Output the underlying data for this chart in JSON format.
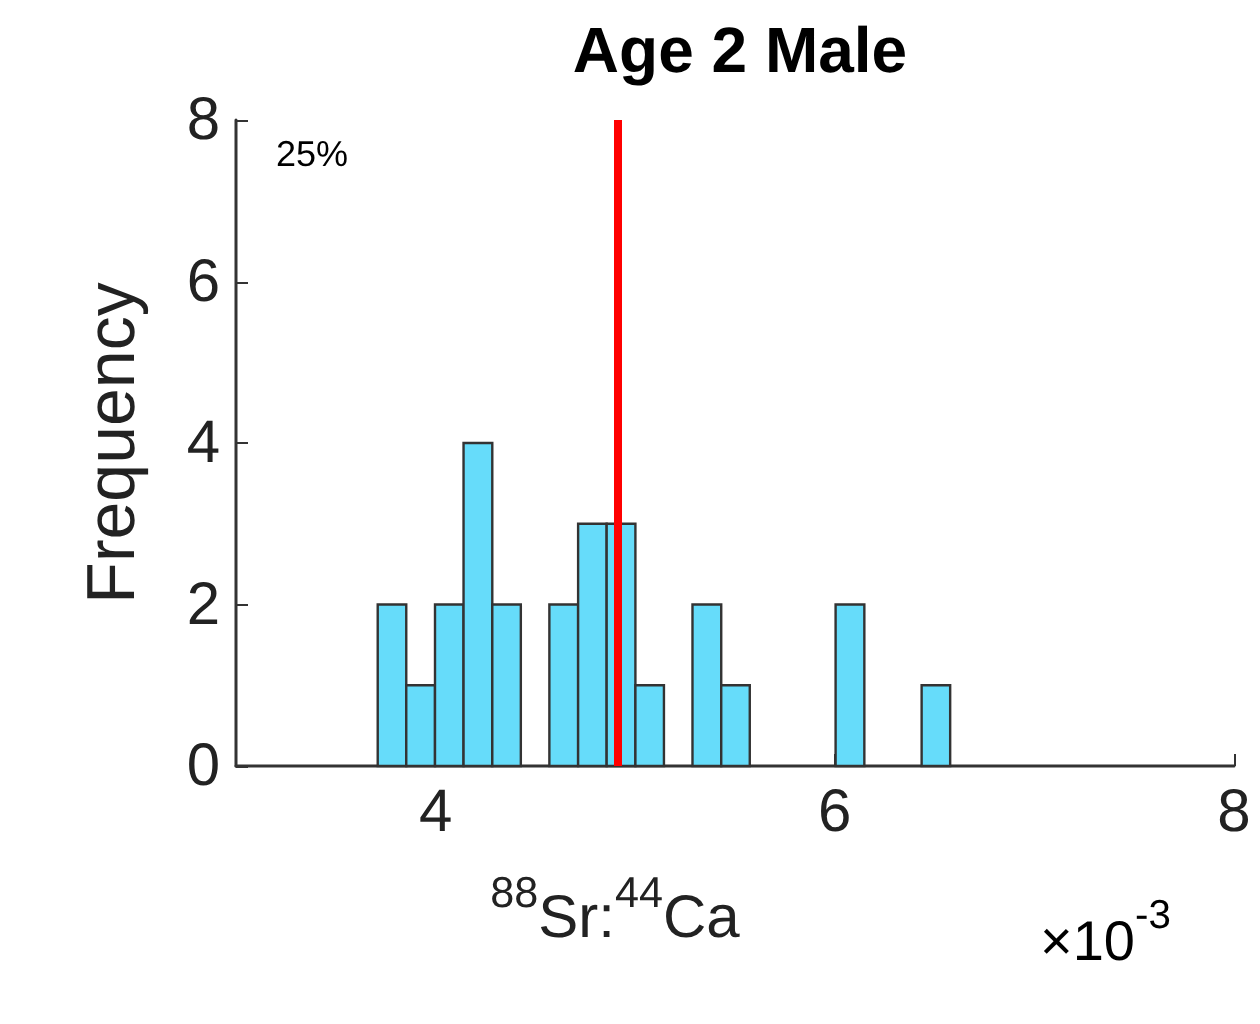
{
  "chart_data": {
    "type": "histogram",
    "title": "Age 2 Male",
    "xlabel": "$^{88}$Sr:$^{44}$Ca",
    "ylabel": "Frequency",
    "bins": [
      3.71,
      3.853,
      3.997,
      4.14,
      4.284,
      4.427,
      4.57,
      4.714,
      4.857,
      5.001,
      5.144,
      5.287,
      5.431,
      5.574,
      5.718,
      5.861,
      6.004,
      6.148,
      6.291,
      6.435,
      6.578
    ],
    "values": [
      2,
      1,
      2,
      4,
      2,
      0,
      2,
      3,
      3,
      1,
      0,
      2,
      1,
      0,
      0,
      0,
      2,
      0,
      0,
      1
    ],
    "color": "#66dcfa",
    "xlim": [
      3,
      8
    ],
    "xticks": [
      4,
      6,
      8
    ],
    "ylim": [
      0,
      8
    ],
    "yticks": [
      0,
      2,
      4,
      6,
      8
    ],
    "grid": false,
    "ref_lines": [
      {
        "axis": "x",
        "value": 4.91,
        "color": "#ff0000"
      }
    ],
    "annotations": [
      "25%",
      "×10$^{-3}$"
    ]
  }
}
